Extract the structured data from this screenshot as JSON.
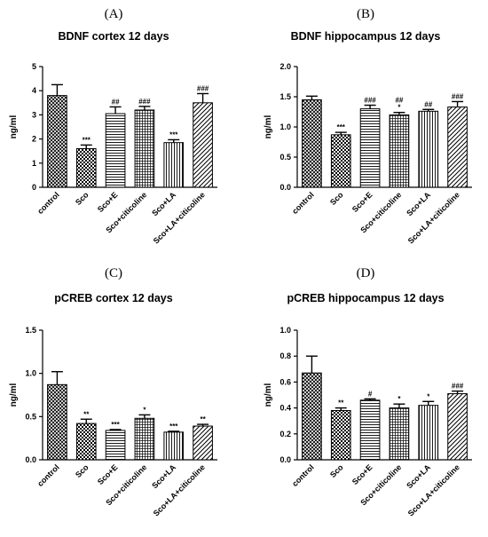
{
  "chart_data": [
    {
      "type": "bar",
      "panel": "(A)",
      "title": "BDNF cortex 12 days",
      "ylabel": "ng/ml",
      "xlabel": "",
      "ylim": [
        0,
        5
      ],
      "yticks": [
        0,
        1,
        2,
        3,
        4,
        5
      ],
      "categories": [
        "control",
        "Sco",
        "Sco+E",
        "Sco+citicoline",
        "Sco+LA",
        "Sco+LA+citicoline"
      ],
      "values": [
        3.8,
        1.6,
        3.05,
        3.2,
        1.85,
        3.5
      ],
      "errors": [
        0.45,
        0.15,
        0.28,
        0.15,
        0.12,
        0.38
      ],
      "annotations": [
        "",
        "***",
        "##",
        "###",
        "***",
        "###"
      ],
      "patterns": [
        "crosshatch",
        "checker",
        "hlines",
        "grid",
        "vlines",
        "diagonal"
      ]
    },
    {
      "type": "bar",
      "panel": "(B)",
      "title": "BDNF hippocampus 12 days",
      "ylabel": "ng/ml",
      "xlabel": "",
      "ylim": [
        0,
        2
      ],
      "yticks": [
        "0.0",
        "0.5",
        "1.0",
        "1.5",
        "2.0"
      ],
      "categories": [
        "control",
        "Sco",
        "Sco+E",
        "Sco+citicoline",
        "Sco+LA",
        "Sco+LA+citicoline"
      ],
      "values": [
        1.45,
        0.87,
        1.3,
        1.2,
        1.26,
        1.33
      ],
      "errors": [
        0.06,
        0.04,
        0.06,
        0.04,
        0.03,
        0.09
      ],
      "annotations": [
        "",
        "***",
        "###",
        "##\n*",
        "##",
        "###"
      ],
      "patterns": [
        "crosshatch",
        "checker",
        "hlines",
        "grid",
        "vlines",
        "diagonal"
      ]
    },
    {
      "type": "bar",
      "panel": "(C)",
      "title": "pCREB cortex 12 days",
      "ylabel": "ng/ml",
      "xlabel": "",
      "ylim": [
        0,
        1.5
      ],
      "yticks": [
        "0.0",
        "0.5",
        "1.0",
        "1.5"
      ],
      "categories": [
        "control",
        "Sco",
        "Sco+E",
        "Sco+citicoline",
        "Sco+LA",
        "Sco+LA+citicoline"
      ],
      "values": [
        0.87,
        0.42,
        0.34,
        0.48,
        0.32,
        0.39
      ],
      "errors": [
        0.15,
        0.05,
        0.01,
        0.04,
        0.01,
        0.02
      ],
      "annotations": [
        "",
        "**",
        "***",
        "*",
        "***",
        "**"
      ],
      "patterns": [
        "crosshatch",
        "checker",
        "hlines",
        "grid",
        "vlines",
        "diagonal"
      ]
    },
    {
      "type": "bar",
      "panel": "(D)",
      "title": "pCREB hippocampus 12 days",
      "ylabel": "ng/ml",
      "xlabel": "",
      "ylim": [
        0,
        1
      ],
      "yticks": [
        "0.0",
        "0.2",
        "0.4",
        "0.6",
        "0.8",
        "1.0"
      ],
      "categories": [
        "control",
        "Sco",
        "Sco+E",
        "Sco+citicoline",
        "Sco+LA",
        "Sco+LA+citicoline"
      ],
      "values": [
        0.67,
        0.38,
        0.46,
        0.4,
        0.42,
        0.51
      ],
      "errors": [
        0.13,
        0.02,
        0.01,
        0.03,
        0.03,
        0.02
      ],
      "annotations": [
        "",
        "**",
        "#",
        "*",
        "*",
        "###"
      ],
      "patterns": [
        "crosshatch",
        "checker",
        "hlines",
        "grid",
        "vlines",
        "diagonal"
      ]
    }
  ]
}
